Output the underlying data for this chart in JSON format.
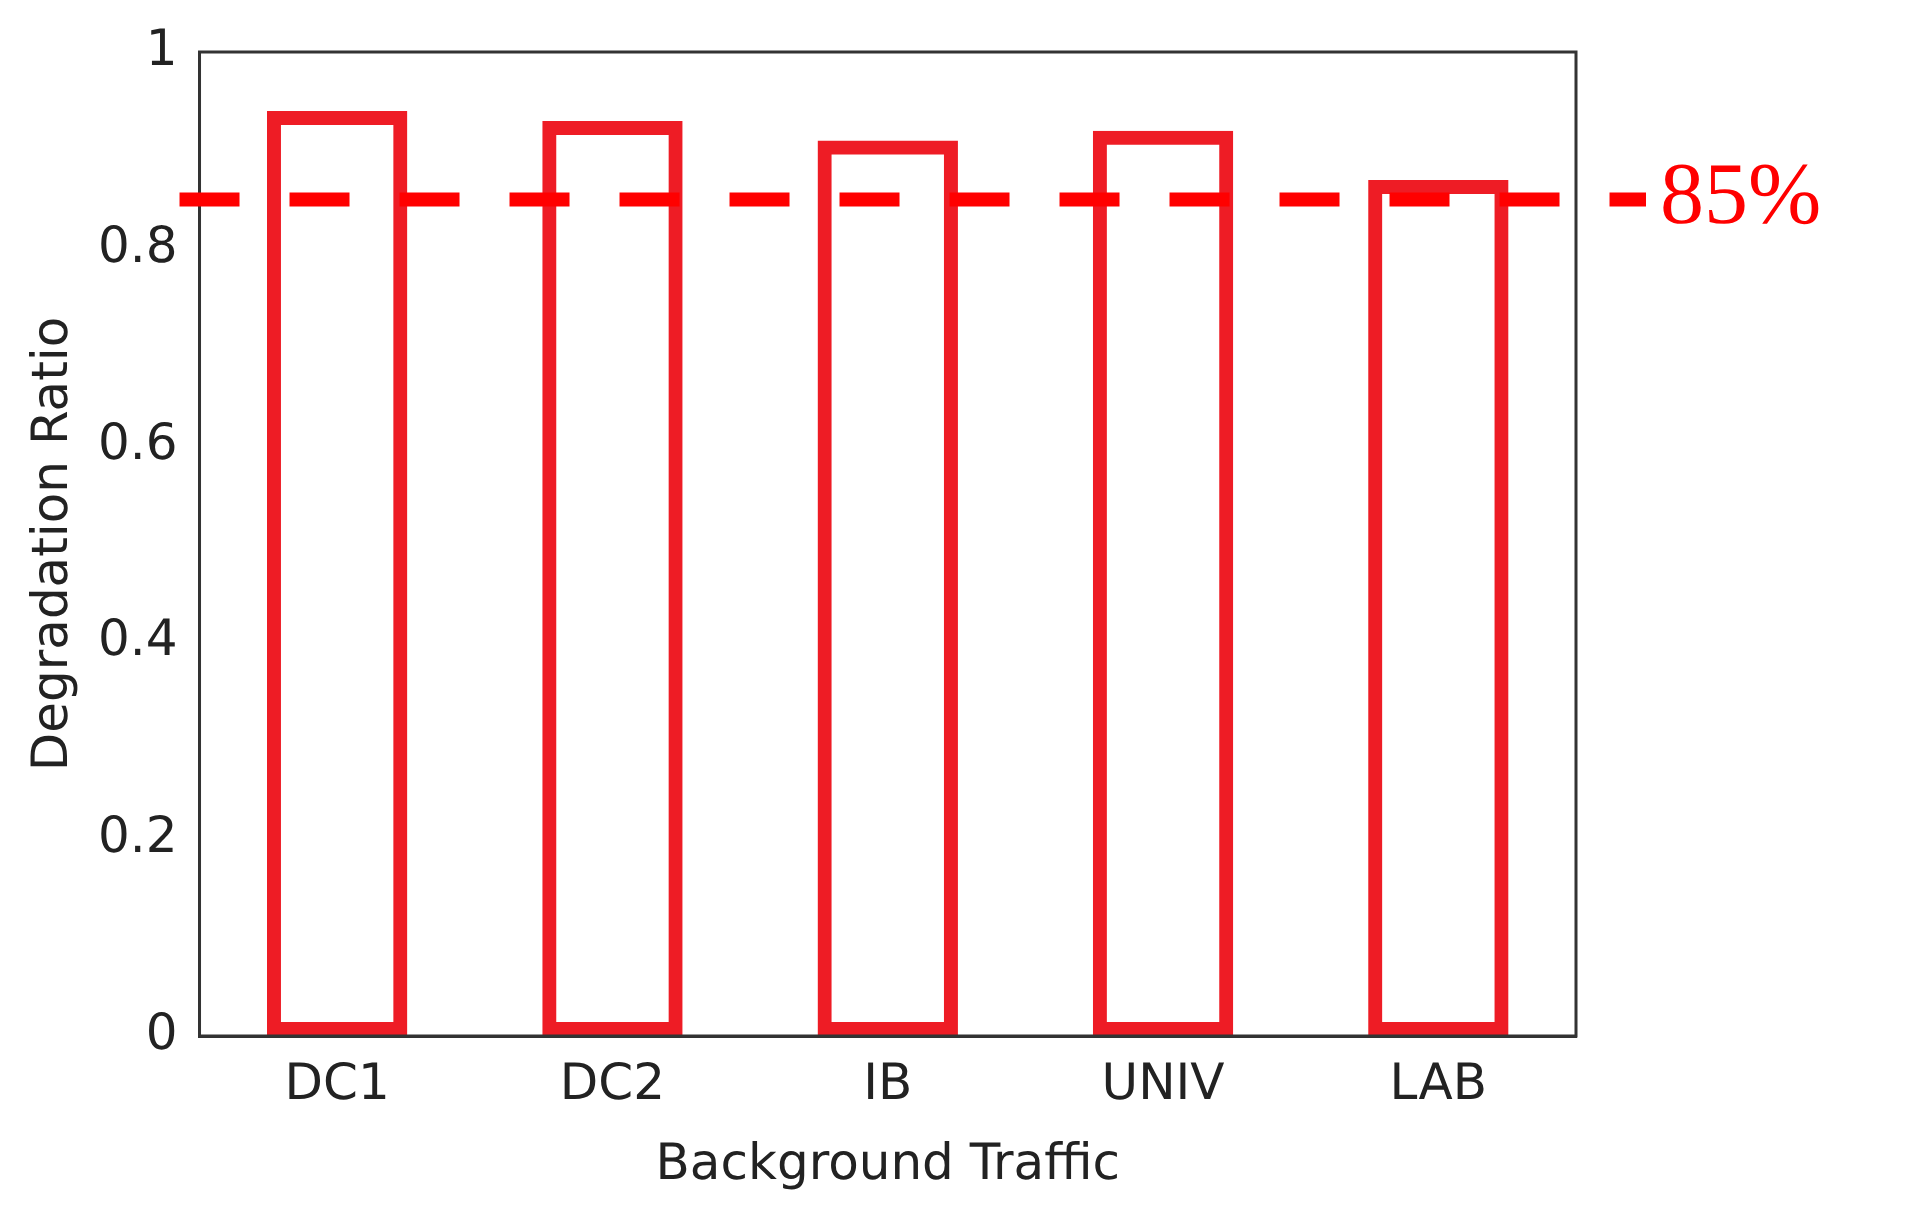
{
  "chart_data": {
    "type": "bar",
    "xlabel": "Background Traffic",
    "ylabel": "Degradation Ratio",
    "categories": [
      "DC1",
      "DC2",
      "IB",
      "UNIV",
      "LAB"
    ],
    "values": [
      0.94,
      0.93,
      0.91,
      0.92,
      0.87
    ],
    "color": "#ee1c25",
    "ylim": [
      0,
      1
    ],
    "yticks": [
      0,
      0.2,
      0.4,
      0.6,
      0.8,
      1
    ],
    "grid": false,
    "legend": false,
    "ref_lines": [
      {
        "axis": "y",
        "value": 0.85,
        "label": "85%",
        "color": "#ff0000",
        "line_style": "dashed"
      }
    ]
  }
}
